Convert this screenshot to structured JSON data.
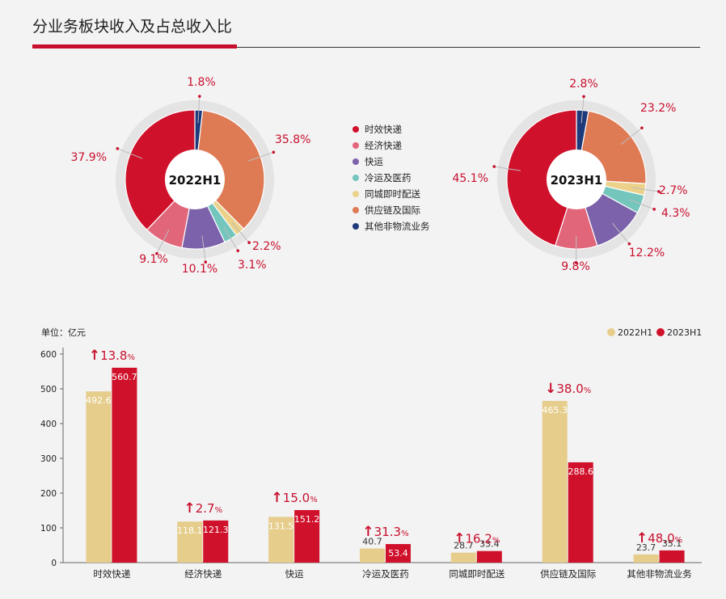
{
  "header": {
    "title": "分业务板块收入及占总收入比"
  },
  "colors": {
    "time_express": "#d0112b",
    "economy": "#e1667a",
    "freight": "#7c62aa",
    "cold": "#74c6bd",
    "intra_city": "#ebd18a",
    "supply": "#de7b55",
    "other": "#1f3a7a",
    "bar_2022": "#e6cd8c",
    "bar_2023": "#d0112b",
    "pct_label": "#c8102e"
  },
  "legend": {
    "items": [
      {
        "label": "时效快递",
        "color": "#d0112b"
      },
      {
        "label": "经济快递",
        "color": "#e1667a"
      },
      {
        "label": "快运",
        "color": "#7c62aa"
      },
      {
        "label": "冷运及医药",
        "color": "#74c6bd"
      },
      {
        "label": "同城即时配送",
        "color": "#ebd18a"
      },
      {
        "label": "供应链及国际",
        "color": "#de7b55"
      },
      {
        "label": "其他非物流业务",
        "color": "#1f3a7a"
      }
    ]
  },
  "chart_data": [
    {
      "type": "pie",
      "title": "2022H1",
      "slices": [
        {
          "category": "时效快递",
          "value": 37.9,
          "label": "37.9%"
        },
        {
          "category": "经济快递",
          "value": 9.1,
          "label": "9.1%"
        },
        {
          "category": "快运",
          "value": 10.1,
          "label": "10.1%"
        },
        {
          "category": "冷运及医药",
          "value": 3.1,
          "label": "3.1%"
        },
        {
          "category": "同城即时配送",
          "value": 2.2,
          "label": "2.2%"
        },
        {
          "category": "供应链及国际",
          "value": 35.8,
          "label": "35.8%"
        },
        {
          "category": "其他非物流业务",
          "value": 1.8,
          "label": "1.8%"
        }
      ]
    },
    {
      "type": "pie",
      "title": "2023H1",
      "slices": [
        {
          "category": "时效快递",
          "value": 45.1,
          "label": "45.1%"
        },
        {
          "category": "经济快递",
          "value": 9.8,
          "label": "9.8%"
        },
        {
          "category": "快运",
          "value": 12.2,
          "label": "12.2%"
        },
        {
          "category": "冷运及医药",
          "value": 4.3,
          "label": "4.3%"
        },
        {
          "category": "同城即时配送",
          "value": 2.7,
          "label": "2.7%"
        },
        {
          "category": "供应链及国际",
          "value": 23.2,
          "label": "23.2%"
        },
        {
          "category": "其他非物流业务",
          "value": 2.8,
          "label": "2.8%"
        }
      ]
    },
    {
      "type": "bar",
      "unit_label": "单位：亿元",
      "ylim": [
        0,
        600
      ],
      "yticks": [
        "0",
        "100",
        "200",
        "300",
        "400",
        "500",
        "600"
      ],
      "categories": [
        "时效快递",
        "经济快递",
        "快运",
        "冷运及医药",
        "同城即时配送",
        "供应链及国际",
        "其他非物流业务"
      ],
      "series": [
        {
          "name": "2022H1",
          "values": [
            492.6,
            118.1,
            131.5,
            40.7,
            28.7,
            465.3,
            23.7
          ],
          "labels": [
            "492.6",
            "118.1",
            "131.5",
            "40.7",
            "28.7",
            "465.3",
            "23.7"
          ]
        },
        {
          "name": "2023H1",
          "values": [
            560.7,
            121.3,
            151.2,
            53.4,
            33.4,
            288.6,
            35.1
          ],
          "labels": [
            "560.7",
            "121.3",
            "151.2",
            "53.4",
            "33.4",
            "288.6",
            "35.1"
          ]
        }
      ],
      "changes": [
        {
          "dir": "up",
          "arrow": "↑",
          "num": "13.8",
          "pct": "%"
        },
        {
          "dir": "up",
          "arrow": "↑",
          "num": "2.7",
          "pct": "%"
        },
        {
          "dir": "up",
          "arrow": "↑",
          "num": "15.0",
          "pct": "%"
        },
        {
          "dir": "up",
          "arrow": "↑",
          "num": "31.3",
          "pct": "%"
        },
        {
          "dir": "up",
          "arrow": "↑",
          "num": "16.2",
          "pct": "%"
        },
        {
          "dir": "down",
          "arrow": "↓",
          "num": "38.0",
          "pct": "%"
        },
        {
          "dir": "up",
          "arrow": "↑",
          "num": "48.0",
          "pct": "%"
        }
      ]
    }
  ]
}
